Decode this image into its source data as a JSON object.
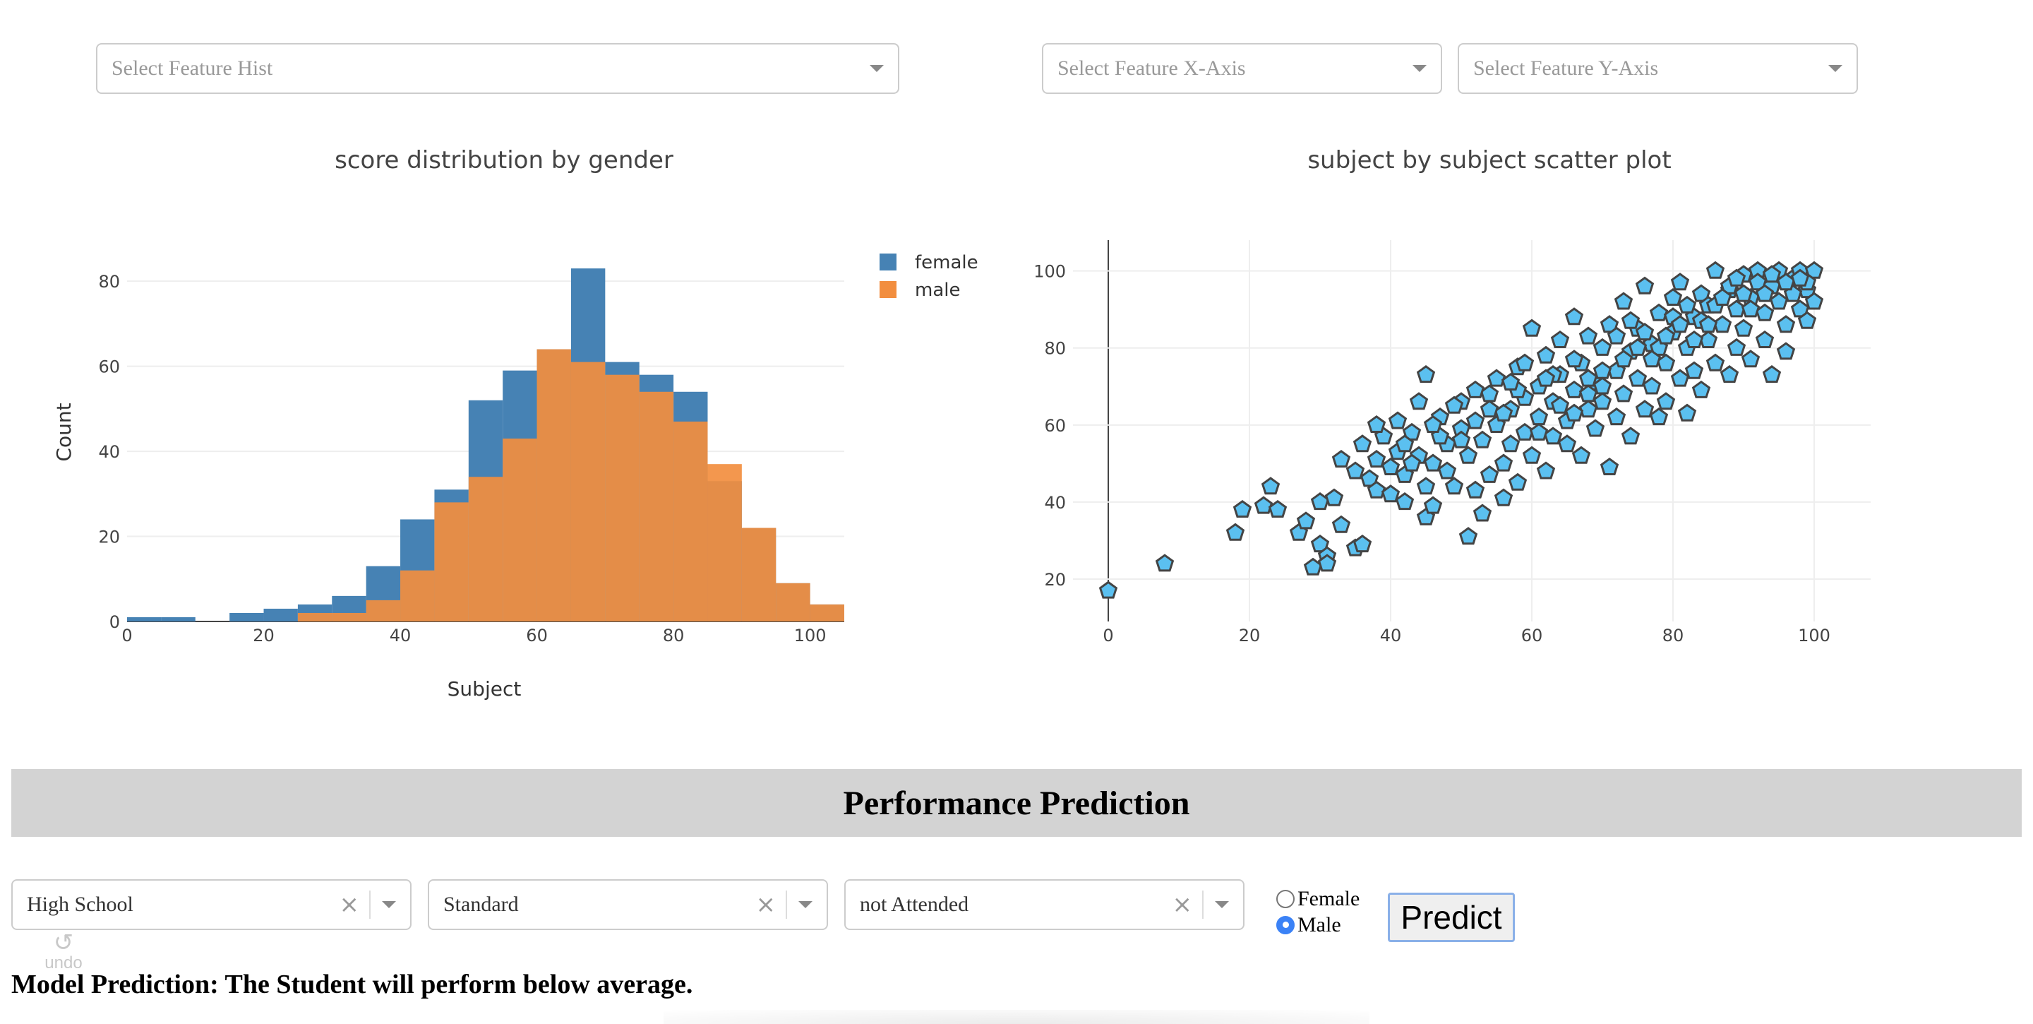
{
  "controls": {
    "hist_feature_placeholder": "Select Feature Hist",
    "x_axis_placeholder": "Select Feature X-Axis",
    "y_axis_placeholder": "Select Feature Y-Axis"
  },
  "histogram": {
    "title": "score distribution by gender",
    "xlabel": "Subject",
    "ylabel": "Count",
    "x_ticks": [
      "0",
      "20",
      "40",
      "60",
      "80",
      "100"
    ],
    "y_ticks": [
      "0",
      "20",
      "40",
      "60",
      "80"
    ],
    "legend": [
      "female",
      "male"
    ]
  },
  "scatter": {
    "title": "subject by subject scatter plot",
    "x_ticks": [
      "0",
      "20",
      "40",
      "60",
      "80",
      "100"
    ],
    "y_ticks": [
      "20",
      "40",
      "60",
      "80",
      "100"
    ]
  },
  "chart_data": [
    {
      "type": "bar",
      "title": "score distribution by gender",
      "xlabel": "Subject",
      "ylabel": "Count",
      "bin_width": 5,
      "bin_starts": [
        0,
        5,
        10,
        15,
        20,
        25,
        30,
        35,
        40,
        45,
        50,
        55,
        60,
        65,
        70,
        75,
        80,
        85,
        90,
        95,
        100
      ],
      "xlim": [
        0,
        105
      ],
      "ylim": [
        0,
        88
      ],
      "barmode": "overlay",
      "legend_position": "top-right",
      "series": [
        {
          "name": "female",
          "color": "#4682b4",
          "values": [
            1,
            1,
            0,
            2,
            3,
            4,
            6,
            13,
            24,
            31,
            52,
            59,
            64,
            83,
            61,
            58,
            54,
            33,
            22,
            9,
            4
          ]
        },
        {
          "name": "male",
          "color": "#f28e3f",
          "values": [
            0,
            0,
            0,
            0,
            0,
            2,
            2,
            5,
            12,
            28,
            34,
            43,
            64,
            61,
            58,
            54,
            47,
            37,
            22,
            9,
            4
          ]
        }
      ]
    },
    {
      "type": "scatter",
      "title": "subject by subject scatter plot",
      "marker": "pentagon",
      "color": "#5bc0f0",
      "xlim": [
        -5,
        108
      ],
      "ylim": [
        9,
        108
      ],
      "points": [
        [
          0,
          17
        ],
        [
          8,
          24
        ],
        [
          18,
          32
        ],
        [
          19,
          38
        ],
        [
          22,
          39
        ],
        [
          23,
          44
        ],
        [
          24,
          38
        ],
        [
          27,
          32
        ],
        [
          28,
          35
        ],
        [
          29,
          23
        ],
        [
          30,
          29
        ],
        [
          30,
          40
        ],
        [
          31,
          26
        ],
        [
          31,
          24
        ],
        [
          32,
          41
        ],
        [
          33,
          34
        ],
        [
          33,
          51
        ],
        [
          35,
          28
        ],
        [
          35,
          48
        ],
        [
          36,
          29
        ],
        [
          36,
          55
        ],
        [
          37,
          46
        ],
        [
          38,
          43
        ],
        [
          38,
          51
        ],
        [
          39,
          57
        ],
        [
          40,
          42
        ],
        [
          40,
          49
        ],
        [
          41,
          61
        ],
        [
          41,
          53
        ],
        [
          42,
          40
        ],
        [
          42,
          47
        ],
        [
          43,
          58
        ],
        [
          44,
          52
        ],
        [
          45,
          36
        ],
        [
          45,
          44
        ],
        [
          45,
          73
        ],
        [
          46,
          39
        ],
        [
          46,
          50
        ],
        [
          47,
          62
        ],
        [
          48,
          55
        ],
        [
          48,
          48
        ],
        [
          49,
          44
        ],
        [
          50,
          59
        ],
        [
          50,
          66
        ],
        [
          51,
          31
        ],
        [
          51,
          52
        ],
        [
          52,
          43
        ],
        [
          52,
          61
        ],
        [
          53,
          56
        ],
        [
          53,
          37
        ],
        [
          54,
          47
        ],
        [
          54,
          68
        ],
        [
          55,
          60
        ],
        [
          55,
          72
        ],
        [
          56,
          50
        ],
        [
          56,
          41
        ],
        [
          57,
          64
        ],
        [
          57,
          55
        ],
        [
          58,
          75
        ],
        [
          58,
          45
        ],
        [
          59,
          58
        ],
        [
          59,
          67
        ],
        [
          60,
          52
        ],
        [
          60,
          85
        ],
        [
          61,
          70
        ],
        [
          61,
          62
        ],
        [
          62,
          48
        ],
        [
          62,
          78
        ],
        [
          63,
          57
        ],
        [
          63,
          66
        ],
        [
          64,
          82
        ],
        [
          64,
          73
        ],
        [
          65,
          55
        ],
        [
          65,
          61
        ],
        [
          66,
          69
        ],
        [
          66,
          88
        ],
        [
          67,
          52
        ],
        [
          67,
          76
        ],
        [
          68,
          64
        ],
        [
          68,
          83
        ],
        [
          69,
          71
        ],
        [
          69,
          59
        ],
        [
          70,
          80
        ],
        [
          70,
          66
        ],
        [
          71,
          49
        ],
        [
          71,
          86
        ],
        [
          72,
          74
        ],
        [
          72,
          62
        ],
        [
          73,
          92
        ],
        [
          73,
          68
        ],
        [
          74,
          79
        ],
        [
          74,
          57
        ],
        [
          75,
          85
        ],
        [
          75,
          72
        ],
        [
          76,
          64
        ],
        [
          76,
          96
        ],
        [
          77,
          81
        ],
        [
          77,
          70
        ],
        [
          78,
          89
        ],
        [
          78,
          62
        ],
        [
          79,
          76
        ],
        [
          79,
          66
        ],
        [
          80,
          93
        ],
        [
          80,
          84
        ],
        [
          81,
          72
        ],
        [
          81,
          97
        ],
        [
          82,
          80
        ],
        [
          82,
          63
        ],
        [
          83,
          88
        ],
        [
          83,
          74
        ],
        [
          84,
          94
        ],
        [
          84,
          69
        ],
        [
          85,
          82
        ],
        [
          85,
          91
        ],
        [
          86,
          76
        ],
        [
          86,
          100
        ],
        [
          87,
          86
        ],
        [
          88,
          73
        ],
        [
          88,
          95
        ],
        [
          89,
          90
        ],
        [
          89,
          80
        ],
        [
          90,
          99
        ],
        [
          90,
          85
        ],
        [
          91,
          93
        ],
        [
          91,
          77
        ],
        [
          92,
          100
        ],
        [
          93,
          89
        ],
        [
          93,
          82
        ],
        [
          94,
          96
        ],
        [
          94,
          73
        ],
        [
          95,
          100
        ],
        [
          95,
          92
        ],
        [
          96,
          86
        ],
        [
          96,
          79
        ],
        [
          97,
          98
        ],
        [
          98,
          90
        ],
        [
          98,
          100
        ],
        [
          99,
          95
        ],
        [
          99,
          87
        ],
        [
          100,
          100
        ],
        [
          100,
          92
        ],
        [
          38,
          60
        ],
        [
          44,
          66
        ],
        [
          49,
          65
        ],
        [
          52,
          69
        ],
        [
          47,
          57
        ],
        [
          43,
          50
        ],
        [
          56,
          63
        ],
        [
          58,
          69
        ],
        [
          61,
          58
        ],
        [
          63,
          73
        ],
        [
          66,
          77
        ],
        [
          68,
          72
        ],
        [
          70,
          74
        ],
        [
          72,
          83
        ],
        [
          74,
          87
        ],
        [
          76,
          84
        ],
        [
          78,
          80
        ],
        [
          80,
          88
        ],
        [
          82,
          91
        ],
        [
          84,
          87
        ],
        [
          86,
          91
        ],
        [
          88,
          96
        ],
        [
          90,
          94
        ],
        [
          92,
          97
        ],
        [
          94,
          99
        ],
        [
          97,
          94
        ],
        [
          99,
          97
        ],
        [
          42,
          55
        ],
        [
          46,
          60
        ],
        [
          50,
          56
        ],
        [
          54,
          64
        ],
        [
          57,
          71
        ],
        [
          59,
          76
        ],
        [
          62,
          72
        ],
        [
          64,
          65
        ],
        [
          66,
          63
        ],
        [
          68,
          68
        ],
        [
          70,
          70
        ],
        [
          73,
          77
        ],
        [
          75,
          80
        ],
        [
          77,
          77
        ],
        [
          79,
          83
        ],
        [
          81,
          86
        ],
        [
          83,
          82
        ],
        [
          85,
          86
        ],
        [
          87,
          93
        ],
        [
          89,
          98
        ],
        [
          91,
          90
        ],
        [
          93,
          94
        ],
        [
          96,
          97
        ],
        [
          98,
          98
        ]
      ]
    }
  ],
  "banner": {
    "title": "Performance Prediction"
  },
  "prediction_form": {
    "education_value": "High School",
    "lunch_value": "Standard",
    "prep_course_value": "not Attended",
    "gender_options": [
      {
        "label": "Female",
        "checked": false
      },
      {
        "label": "Male",
        "checked": true
      }
    ],
    "predict_label": "Predict"
  },
  "undo": {
    "label": "undo"
  },
  "result": {
    "text": "Model Prediction: The Student will perform below average."
  }
}
